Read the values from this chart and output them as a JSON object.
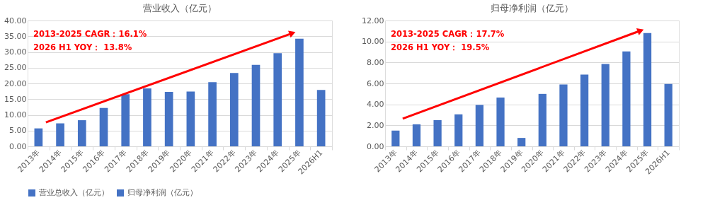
{
  "chart_data": [
    {
      "type": "bar",
      "title": "营业收入（亿元）",
      "categories": [
        "2013年",
        "2014年",
        "2015年",
        "2016年",
        "2017年",
        "2018年",
        "2019年",
        "2020年",
        "2021年",
        "2022年",
        "2023年",
        "2024年",
        "2025年",
        "2026H1"
      ],
      "series": [
        {
          "name": "营业总收入（亿元）",
          "color": "#4472c4",
          "values": [
            5.7,
            7.3,
            8.3,
            12.2,
            16.6,
            18.4,
            17.3,
            17.4,
            20.4,
            23.3,
            25.9,
            29.6,
            34.2,
            17.9
          ]
        }
      ],
      "ylim": [
        0,
        40
      ],
      "yticks": [
        {
          "value": 0,
          "label": "0.00"
        },
        {
          "value": 5,
          "label": "5.00"
        },
        {
          "value": 10,
          "label": "10.00"
        },
        {
          "value": 15,
          "label": "15.00"
        },
        {
          "value": 20,
          "label": "20.00"
        },
        {
          "value": 25,
          "label": "25.00"
        },
        {
          "value": 30,
          "label": "30.00"
        },
        {
          "value": 35,
          "label": "35.00"
        },
        {
          "value": 40,
          "label": "40.00"
        }
      ],
      "annotations": [
        "2013-2025 CAGR：16.1%",
        "2026 H1      YOY：   13.8%"
      ],
      "grid": "y",
      "legend": "bottom"
    },
    {
      "type": "bar",
      "title": "归母净利润（亿元）",
      "categories": [
        "2013年",
        "2014年",
        "2015年",
        "2016年",
        "2017年",
        "2018年",
        "2019年",
        "2020年",
        "2021年",
        "2022年",
        "2023年",
        "2024年",
        "2025年",
        "2026H1"
      ],
      "series": [
        {
          "name": "归母净利润（亿元）",
          "color": "#4472c4",
          "values": [
            1.5,
            2.1,
            2.5,
            3.05,
            3.95,
            4.65,
            0.8,
            5.0,
            5.9,
            6.85,
            7.85,
            9.05,
            10.8,
            5.95
          ]
        }
      ],
      "ylim": [
        0,
        12
      ],
      "yticks": [
        {
          "value": 0,
          "label": "0.00"
        },
        {
          "value": 2,
          "label": "2.00"
        },
        {
          "value": 4,
          "label": "4.00"
        },
        {
          "value": 6,
          "label": "6.00"
        },
        {
          "value": 8,
          "label": "8.00"
        },
        {
          "value": 10,
          "label": "10.00"
        },
        {
          "value": 12,
          "label": "12.00"
        }
      ],
      "annotations": [
        "2013-2025 CAGR：17.7%",
        "2026 H1      YOY：   19.5%"
      ],
      "grid": "y",
      "legend": "bottom"
    }
  ]
}
